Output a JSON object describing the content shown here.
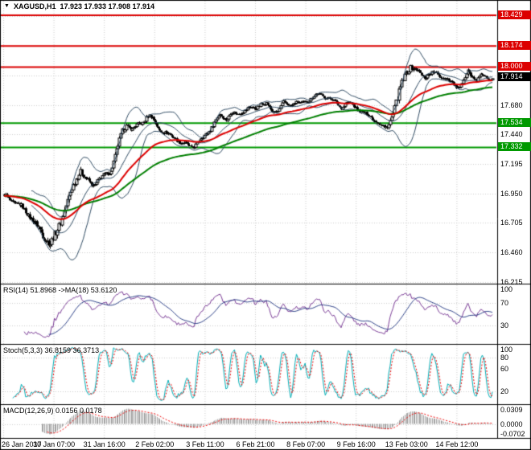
{
  "window": {
    "symbol": "XAGUSD,H1",
    "ohlc": "17.923 17.933 17.908 17.914",
    "collapse_icon": "▼"
  },
  "indicator_labels": {
    "rsi": "RSI(14) 51.8968 ->MA(18) 53.6120",
    "stoch": "Stoch(5,3,3) 36.8159 36.3713",
    "macd": "MACD(12,26,9) 0.0156 0.0178"
  },
  "colors": {
    "background": "#FFFFFF",
    "border": "#000000",
    "grid": "#CDCDCD",
    "candle": "#000000",
    "bull_body": "#FFFFFF",
    "bollinger": "#2E4A62",
    "ma_fast": "#DD0000",
    "ma_slow": "#007F00",
    "resistance_line": "#DC0000",
    "support_line": "#009900",
    "current_tag_bg": "#000000",
    "rsi_line": "#7A3B96",
    "rsi_ma_line": "#2B3F87",
    "stoch_main": "#00AEB6",
    "stoch_signal": "#EE0000",
    "macd_hist": "#A0A0A0",
    "macd_signal": "#EE0000"
  },
  "chart_data": {
    "type": "candlestick",
    "symbol": "XAGUSD",
    "timeframe": "H1",
    "current_bar": {
      "open": 17.923,
      "high": 17.933,
      "low": 17.908,
      "close": 17.914
    },
    "x_labels": [
      "26 Jan 2017",
      "30 Jan 07:00",
      "31 Jan 16:00",
      "2 Feb 02:00",
      "3 Feb 11:00",
      "6 Feb 21:00",
      "8 Feb 07:00",
      "9 Feb 16:00",
      "13 Feb 03:00",
      "14 Feb 12:00"
    ],
    "price_axis": {
      "min": 16.2,
      "max": 18.55,
      "plain_labels": [
        17.68,
        17.44,
        17.195,
        16.95,
        16.705,
        16.46,
        16.215
      ],
      "grid_base": 16.215,
      "grid_step": 0.245,
      "grid_count": 10
    },
    "levels": {
      "resistance": [
        18.429,
        18.174,
        18.0
      ],
      "support": [
        17.534,
        17.332
      ],
      "current_price": 17.914
    },
    "bars_total": 340,
    "price_path": [
      [
        0,
        16.93,
        0.02
      ],
      [
        6,
        16.88,
        0.018
      ],
      [
        12,
        16.84,
        0.018
      ],
      [
        18,
        16.76,
        0.022
      ],
      [
        24,
        16.66,
        0.028
      ],
      [
        29,
        16.57,
        0.032
      ],
      [
        32,
        16.53,
        0.034
      ],
      [
        36,
        16.62,
        0.034
      ],
      [
        41,
        16.78,
        0.032
      ],
      [
        46,
        16.95,
        0.03
      ],
      [
        50,
        17.08,
        0.028
      ],
      [
        53,
        17.14,
        0.024
      ],
      [
        57,
        17.06,
        0.02
      ],
      [
        62,
        17.02,
        0.018
      ],
      [
        66,
        17.07,
        0.017
      ],
      [
        70,
        17.1,
        0.016
      ],
      [
        74,
        17.14,
        0.018
      ],
      [
        78,
        17.3,
        0.026
      ],
      [
        82,
        17.46,
        0.026
      ],
      [
        85,
        17.52,
        0.02
      ],
      [
        89,
        17.48,
        0.016
      ],
      [
        93,
        17.52,
        0.015
      ],
      [
        97,
        17.55,
        0.015
      ],
      [
        100,
        17.6,
        0.018
      ],
      [
        103,
        17.57,
        0.015
      ],
      [
        107,
        17.49,
        0.016
      ],
      [
        111,
        17.46,
        0.015
      ],
      [
        115,
        17.43,
        0.015
      ],
      [
        119,
        17.41,
        0.015
      ],
      [
        123,
        17.37,
        0.016
      ],
      [
        127,
        17.35,
        0.015
      ],
      [
        130,
        17.335,
        0.015
      ],
      [
        134,
        17.37,
        0.015
      ],
      [
        138,
        17.41,
        0.015
      ],
      [
        142,
        17.47,
        0.016
      ],
      [
        146,
        17.54,
        0.016
      ],
      [
        150,
        17.6,
        0.015
      ],
      [
        154,
        17.57,
        0.013
      ],
      [
        158,
        17.62,
        0.013
      ],
      [
        162,
        17.6,
        0.013
      ],
      [
        166,
        17.64,
        0.013
      ],
      [
        170,
        17.66,
        0.013
      ],
      [
        174,
        17.65,
        0.013
      ],
      [
        178,
        17.7,
        0.013
      ],
      [
        182,
        17.69,
        0.013
      ],
      [
        186,
        17.63,
        0.013
      ],
      [
        190,
        17.64,
        0.013
      ],
      [
        194,
        17.7,
        0.013
      ],
      [
        198,
        17.68,
        0.012
      ],
      [
        202,
        17.71,
        0.012
      ],
      [
        206,
        17.69,
        0.012
      ],
      [
        210,
        17.72,
        0.012
      ],
      [
        214,
        17.75,
        0.012
      ],
      [
        218,
        17.77,
        0.012
      ],
      [
        222,
        17.76,
        0.012
      ],
      [
        226,
        17.74,
        0.012
      ],
      [
        230,
        17.7,
        0.013
      ],
      [
        234,
        17.67,
        0.013
      ],
      [
        238,
        17.7,
        0.013
      ],
      [
        242,
        17.68,
        0.013
      ],
      [
        246,
        17.65,
        0.013
      ],
      [
        250,
        17.61,
        0.013
      ],
      [
        254,
        17.59,
        0.013
      ],
      [
        258,
        17.56,
        0.015
      ],
      [
        261,
        17.52,
        0.017
      ],
      [
        264,
        17.48,
        0.019
      ],
      [
        267,
        17.53,
        0.024
      ],
      [
        270,
        17.62,
        0.03
      ],
      [
        273,
        17.74,
        0.032
      ],
      [
        276,
        17.86,
        0.032
      ],
      [
        279,
        17.96,
        0.028
      ],
      [
        282,
        18.0,
        0.024
      ],
      [
        285,
        17.97,
        0.02
      ],
      [
        288,
        17.96,
        0.017
      ],
      [
        292,
        17.92,
        0.015
      ],
      [
        296,
        17.94,
        0.015
      ],
      [
        300,
        17.95,
        0.014
      ],
      [
        304,
        17.92,
        0.014
      ],
      [
        308,
        17.89,
        0.014
      ],
      [
        312,
        17.86,
        0.015
      ],
      [
        316,
        17.83,
        0.015
      ],
      [
        319,
        17.87,
        0.017
      ],
      [
        322,
        17.99,
        0.026
      ],
      [
        324,
        17.93,
        0.018
      ],
      [
        328,
        17.89,
        0.014
      ],
      [
        332,
        17.93,
        0.013
      ],
      [
        336,
        17.9,
        0.012
      ],
      [
        339,
        17.914,
        0.011
      ]
    ],
    "indicators": {
      "bollinger": {
        "period": 20,
        "deviation": 2
      },
      "ma_fast": {
        "period": 50
      },
      "ma_slow": {
        "period": 100
      },
      "rsi": {
        "period": 14,
        "ma_period": 18,
        "value": 51.8968,
        "ma_value": 53.612,
        "levels": [
          70,
          30
        ],
        "axis_labels": [
          100,
          70,
          30
        ]
      },
      "stoch": {
        "k_period": 5,
        "d_period": 3,
        "slowing": 3,
        "value": 36.8159,
        "signal_value": 36.3713,
        "levels": [
          80,
          20
        ],
        "axis_labels": [
          100,
          80,
          60,
          20
        ]
      },
      "macd": {
        "fast": 12,
        "slow": 26,
        "signal": 9,
        "value": 0.0156,
        "signal_value": 0.0178,
        "axis_labels": [
          "0.0309",
          "0.0000",
          "-0.0702"
        ]
      }
    }
  }
}
